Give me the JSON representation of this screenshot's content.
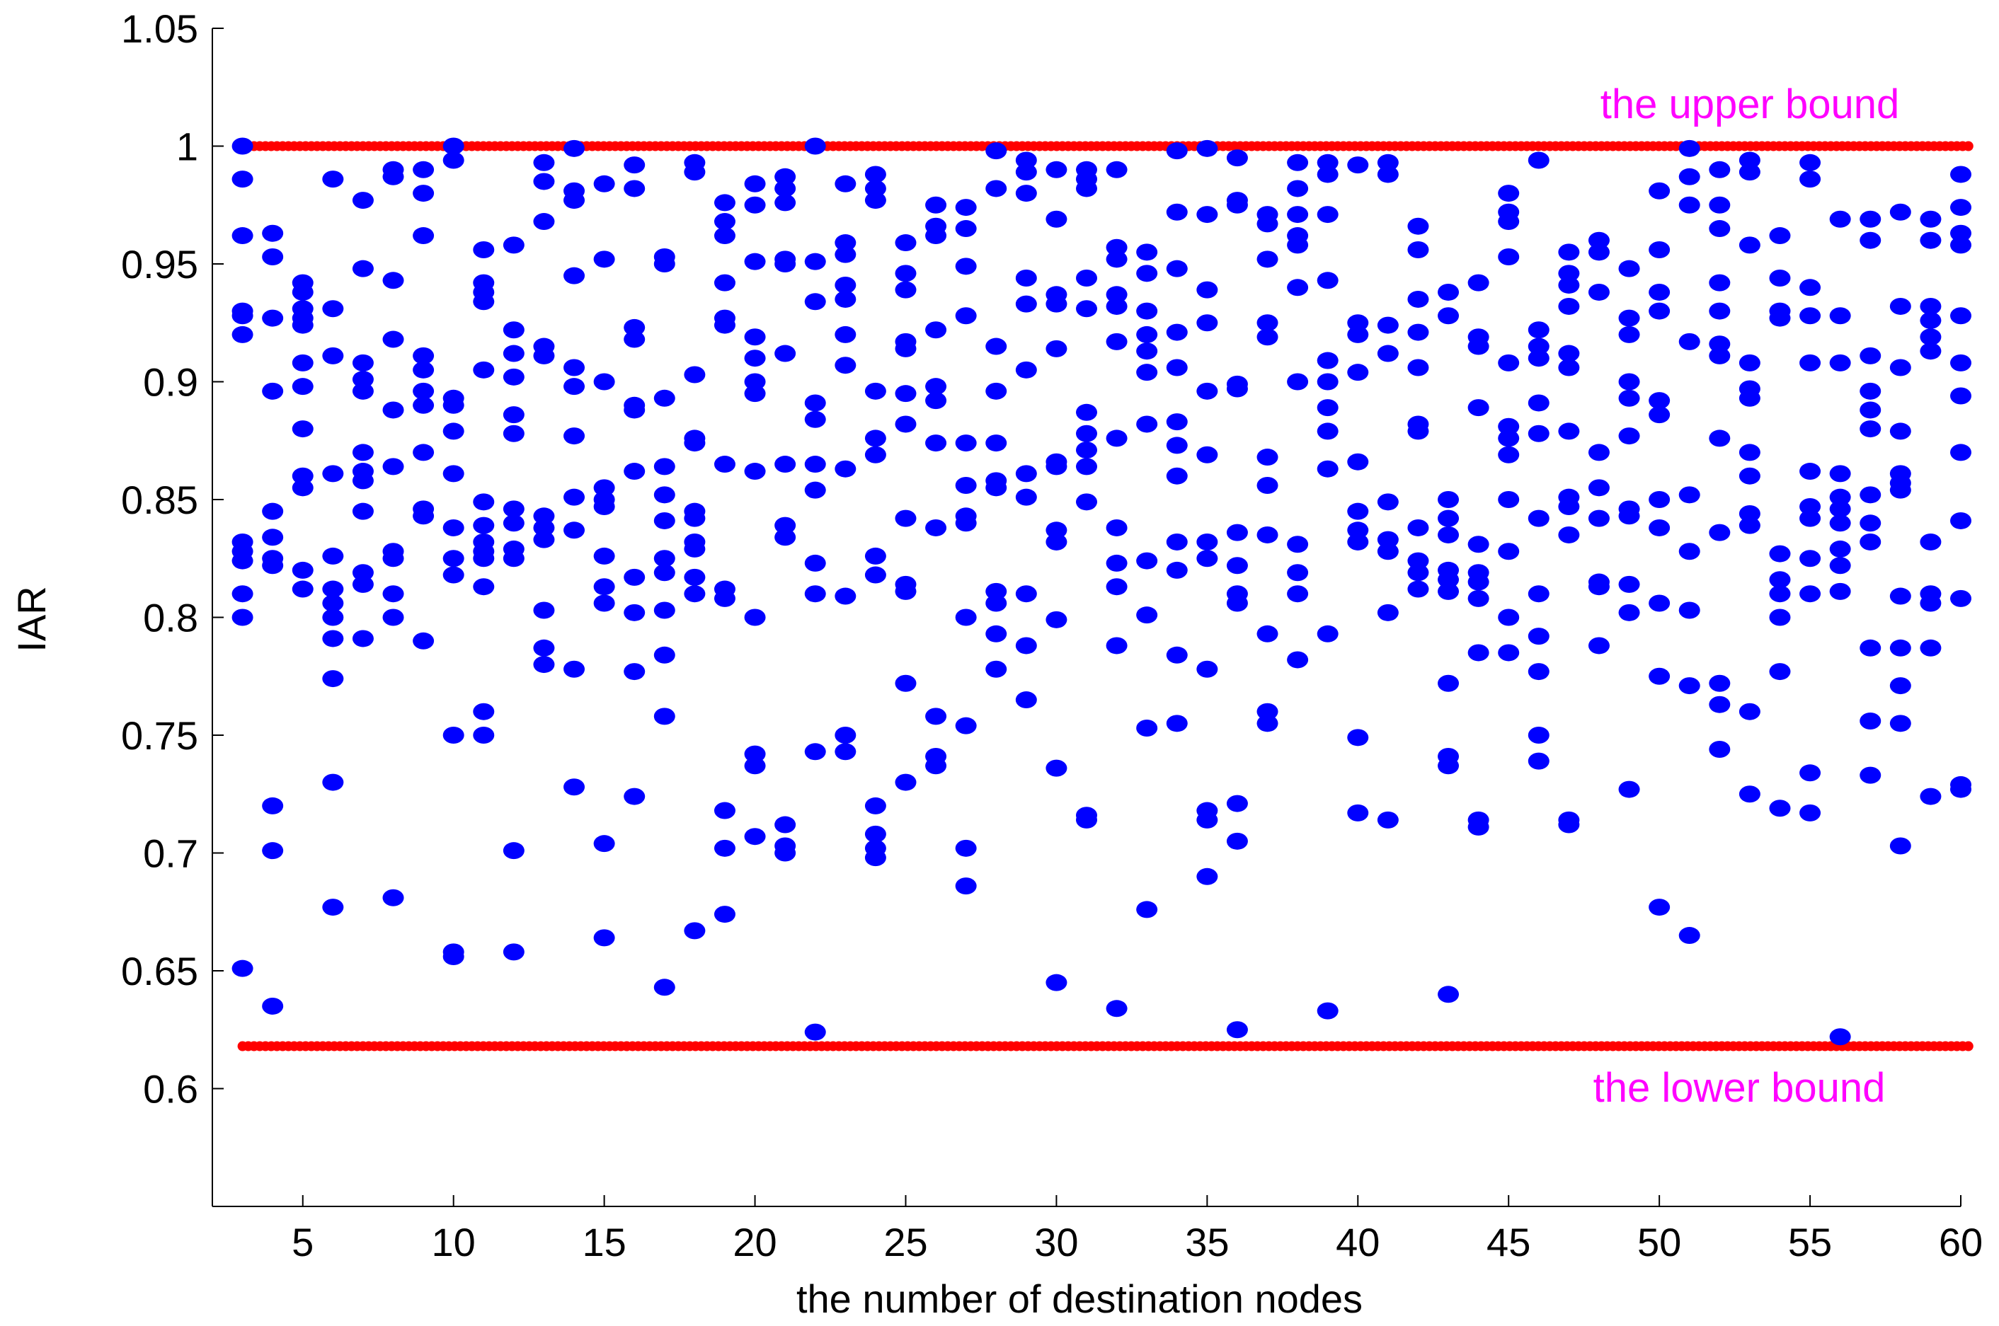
{
  "chart_data": {
    "type": "scatter",
    "title": "",
    "xlabel": "the number of destination nodes",
    "ylabel": "IAR",
    "xlim": [
      2,
      60
    ],
    "ylim": [
      0.55,
      1.05
    ],
    "xticks": [
      5,
      10,
      15,
      20,
      25,
      30,
      35,
      40,
      45,
      50,
      55,
      60
    ],
    "yticks": [
      0.6,
      0.65,
      0.7,
      0.75,
      0.8,
      0.85,
      0.9,
      0.95,
      1,
      1.05
    ],
    "ytick_labels": [
      "0.6",
      "0.65",
      "0.7",
      "0.75",
      "0.8",
      "0.85",
      "0.9",
      "0.95",
      "1",
      "1.05"
    ],
    "grid": false,
    "colors": {
      "points": "#0000ff",
      "bounds": "#ff0000",
      "annotations": "#ff00ff",
      "axis": "#000000"
    },
    "bounds": [
      {
        "name": "upper",
        "y": 1.0,
        "label": "the upper bound"
      },
      {
        "name": "lower",
        "y": 0.618,
        "label": "the lower bound"
      }
    ],
    "series": [
      {
        "values_by_x": {
          "3": [
            1.0,
            0.986,
            0.962,
            0.93,
            0.928,
            0.92,
            0.832,
            0.828,
            0.824,
            0.81,
            0.8,
            0.651
          ],
          "4": [
            0.963,
            0.953,
            0.927,
            0.896,
            0.845,
            0.834,
            0.825,
            0.822,
            0.72,
            0.701,
            0.635
          ],
          "5": [
            0.942,
            0.938,
            0.931,
            0.927,
            0.924,
            0.908,
            0.898,
            0.88,
            0.86,
            0.855,
            0.82,
            0.812
          ],
          "6": [
            0.986,
            0.931,
            0.911,
            0.861,
            0.826,
            0.812,
            0.806,
            0.8,
            0.791,
            0.774,
            0.73,
            0.677
          ],
          "7": [
            0.977,
            0.948,
            0.908,
            0.901,
            0.896,
            0.87,
            0.862,
            0.858,
            0.845,
            0.819,
            0.814,
            0.791
          ],
          "8": [
            0.99,
            0.987,
            0.943,
            0.918,
            0.888,
            0.864,
            0.828,
            0.825,
            0.81,
            0.8,
            0.681
          ],
          "9": [
            0.99,
            0.98,
            0.962,
            0.911,
            0.905,
            0.896,
            0.89,
            0.87,
            0.846,
            0.843,
            0.79
          ],
          "10": [
            1.0,
            0.994,
            0.893,
            0.89,
            0.879,
            0.861,
            0.838,
            0.825,
            0.818,
            0.75,
            0.658,
            0.656
          ],
          "11": [
            0.956,
            0.942,
            0.938,
            0.934,
            0.905,
            0.849,
            0.839,
            0.832,
            0.828,
            0.825,
            0.813,
            0.76,
            0.75
          ],
          "12": [
            0.958,
            0.922,
            0.912,
            0.902,
            0.886,
            0.878,
            0.846,
            0.84,
            0.829,
            0.825,
            0.701,
            0.658
          ],
          "13": [
            0.993,
            0.985,
            0.968,
            0.915,
            0.911,
            0.843,
            0.838,
            0.833,
            0.803,
            0.787,
            0.78
          ],
          "14": [
            0.999,
            0.981,
            0.977,
            0.945,
            0.906,
            0.898,
            0.877,
            0.851,
            0.837,
            0.778,
            0.728
          ],
          "15": [
            0.984,
            0.952,
            0.9,
            0.855,
            0.85,
            0.847,
            0.826,
            0.813,
            0.806,
            0.704,
            0.664
          ],
          "16": [
            0.992,
            0.982,
            0.923,
            0.918,
            0.89,
            0.888,
            0.862,
            0.817,
            0.802,
            0.777,
            0.724
          ],
          "17": [
            0.953,
            0.95,
            0.893,
            0.864,
            0.852,
            0.841,
            0.825,
            0.819,
            0.803,
            0.784,
            0.758,
            0.643
          ],
          "18": [
            0.993,
            0.989,
            0.903,
            0.876,
            0.874,
            0.845,
            0.842,
            0.832,
            0.829,
            0.817,
            0.81,
            0.667
          ],
          "19": [
            0.976,
            0.968,
            0.962,
            0.942,
            0.927,
            0.924,
            0.865,
            0.812,
            0.808,
            0.718,
            0.702,
            0.674
          ],
          "20": [
            0.984,
            0.975,
            0.951,
            0.919,
            0.91,
            0.9,
            0.895,
            0.862,
            0.8,
            0.742,
            0.737,
            0.707
          ],
          "21": [
            0.987,
            0.982,
            0.976,
            0.952,
            0.95,
            0.912,
            0.865,
            0.839,
            0.834,
            0.712,
            0.703,
            0.7
          ],
          "22": [
            1.0,
            0.951,
            0.934,
            0.891,
            0.884,
            0.865,
            0.854,
            0.823,
            0.81,
            0.743,
            0.624
          ],
          "23": [
            0.984,
            0.959,
            0.954,
            0.941,
            0.935,
            0.92,
            0.907,
            0.863,
            0.809,
            0.75,
            0.743
          ],
          "24": [
            0.988,
            0.982,
            0.977,
            0.896,
            0.876,
            0.869,
            0.826,
            0.818,
            0.72,
            0.708,
            0.702,
            0.698
          ],
          "25": [
            0.959,
            0.946,
            0.939,
            0.917,
            0.914,
            0.895,
            0.882,
            0.842,
            0.814,
            0.811,
            0.772,
            0.73
          ],
          "26": [
            0.975,
            0.966,
            0.962,
            0.922,
            0.898,
            0.892,
            0.874,
            0.838,
            0.758,
            0.741,
            0.737
          ],
          "27": [
            0.974,
            0.965,
            0.949,
            0.928,
            0.874,
            0.856,
            0.843,
            0.84,
            0.8,
            0.754,
            0.702,
            0.686
          ],
          "28": [
            0.998,
            0.982,
            0.915,
            0.896,
            0.874,
            0.858,
            0.855,
            0.811,
            0.806,
            0.793,
            0.778
          ],
          "29": [
            0.994,
            0.989,
            0.98,
            0.944,
            0.933,
            0.905,
            0.861,
            0.851,
            0.81,
            0.788,
            0.765
          ],
          "30": [
            0.99,
            0.969,
            0.937,
            0.933,
            0.914,
            0.866,
            0.864,
            0.837,
            0.832,
            0.799,
            0.736,
            0.645
          ],
          "31": [
            0.99,
            0.986,
            0.982,
            0.944,
            0.931,
            0.887,
            0.878,
            0.871,
            0.864,
            0.849,
            0.716,
            0.714
          ],
          "32": [
            0.99,
            0.957,
            0.952,
            0.937,
            0.932,
            0.917,
            0.876,
            0.838,
            0.823,
            0.813,
            0.788,
            0.634
          ],
          "33": [
            0.955,
            0.946,
            0.93,
            0.92,
            0.913,
            0.904,
            0.882,
            0.824,
            0.801,
            0.753,
            0.676
          ],
          "34": [
            0.998,
            0.972,
            0.948,
            0.921,
            0.906,
            0.883,
            0.873,
            0.86,
            0.832,
            0.82,
            0.784,
            0.755
          ],
          "35": [
            0.999,
            0.971,
            0.939,
            0.925,
            0.896,
            0.869,
            0.832,
            0.825,
            0.778,
            0.718,
            0.714,
            0.69
          ],
          "36": [
            0.995,
            0.977,
            0.975,
            0.899,
            0.897,
            0.836,
            0.822,
            0.81,
            0.806,
            0.721,
            0.705,
            0.625
          ],
          "37": [
            0.971,
            0.967,
            0.952,
            0.925,
            0.919,
            0.868,
            0.856,
            0.835,
            0.793,
            0.76,
            0.755
          ],
          "38": [
            0.993,
            0.982,
            0.971,
            0.962,
            0.958,
            0.94,
            0.9,
            0.831,
            0.819,
            0.81,
            0.782
          ],
          "39": [
            0.993,
            0.988,
            0.971,
            0.943,
            0.909,
            0.9,
            0.889,
            0.879,
            0.863,
            0.793,
            0.633
          ],
          "40": [
            0.992,
            0.925,
            0.92,
            0.904,
            0.866,
            0.845,
            0.837,
            0.832,
            0.749,
            0.717
          ],
          "41": [
            0.993,
            0.988,
            0.924,
            0.912,
            0.849,
            0.833,
            0.828,
            0.802,
            0.714
          ],
          "42": [
            0.966,
            0.956,
            0.935,
            0.921,
            0.906,
            0.882,
            0.879,
            0.838,
            0.824,
            0.819,
            0.812
          ],
          "43": [
            0.938,
            0.928,
            0.85,
            0.842,
            0.835,
            0.82,
            0.816,
            0.811,
            0.772,
            0.741,
            0.737,
            0.64
          ],
          "44": [
            0.942,
            0.919,
            0.915,
            0.889,
            0.831,
            0.819,
            0.815,
            0.808,
            0.785,
            0.714,
            0.711
          ],
          "45": [
            0.98,
            0.972,
            0.968,
            0.953,
            0.908,
            0.881,
            0.876,
            0.869,
            0.85,
            0.828,
            0.8,
            0.785
          ],
          "46": [
            0.994,
            0.922,
            0.915,
            0.91,
            0.891,
            0.878,
            0.842,
            0.81,
            0.792,
            0.777,
            0.75,
            0.739
          ],
          "47": [
            0.955,
            0.946,
            0.941,
            0.932,
            0.912,
            0.906,
            0.879,
            0.851,
            0.847,
            0.835,
            0.714,
            0.712
          ],
          "48": [
            0.96,
            0.955,
            0.938,
            0.87,
            0.855,
            0.842,
            0.815,
            0.813,
            0.788
          ],
          "49": [
            0.948,
            0.927,
            0.92,
            0.9,
            0.893,
            0.877,
            0.846,
            0.843,
            0.814,
            0.802,
            0.727
          ],
          "50": [
            0.981,
            0.956,
            0.938,
            0.93,
            0.892,
            0.886,
            0.85,
            0.838,
            0.806,
            0.775,
            0.677
          ],
          "51": [
            0.999,
            0.987,
            0.975,
            0.917,
            0.852,
            0.828,
            0.803,
            0.771,
            0.665
          ],
          "52": [
            0.99,
            0.975,
            0.965,
            0.942,
            0.93,
            0.916,
            0.911,
            0.876,
            0.836,
            0.772,
            0.763,
            0.744
          ],
          "53": [
            0.994,
            0.989,
            0.958,
            0.908,
            0.897,
            0.893,
            0.87,
            0.86,
            0.844,
            0.839,
            0.76,
            0.725
          ],
          "54": [
            0.962,
            0.944,
            0.93,
            0.927,
            0.827,
            0.816,
            0.81,
            0.8,
            0.777,
            0.719
          ],
          "55": [
            0.993,
            0.986,
            0.94,
            0.928,
            0.908,
            0.862,
            0.847,
            0.842,
            0.825,
            0.81,
            0.734,
            0.717
          ],
          "56": [
            0.969,
            0.928,
            0.908,
            0.861,
            0.851,
            0.846,
            0.84,
            0.829,
            0.822,
            0.811,
            0.622
          ],
          "57": [
            0.969,
            0.96,
            0.911,
            0.896,
            0.888,
            0.88,
            0.852,
            0.84,
            0.832,
            0.787,
            0.756,
            0.733
          ],
          "58": [
            0.972,
            0.932,
            0.906,
            0.879,
            0.861,
            0.857,
            0.854,
            0.809,
            0.787,
            0.771,
            0.755,
            0.703
          ],
          "59": [
            0.969,
            0.96,
            0.932,
            0.926,
            0.919,
            0.913,
            0.832,
            0.81,
            0.806,
            0.787,
            0.724
          ],
          "60": [
            0.988,
            0.974,
            0.963,
            0.958,
            0.928,
            0.908,
            0.894,
            0.87,
            0.841,
            0.808,
            0.729,
            0.727
          ]
        }
      }
    ]
  }
}
